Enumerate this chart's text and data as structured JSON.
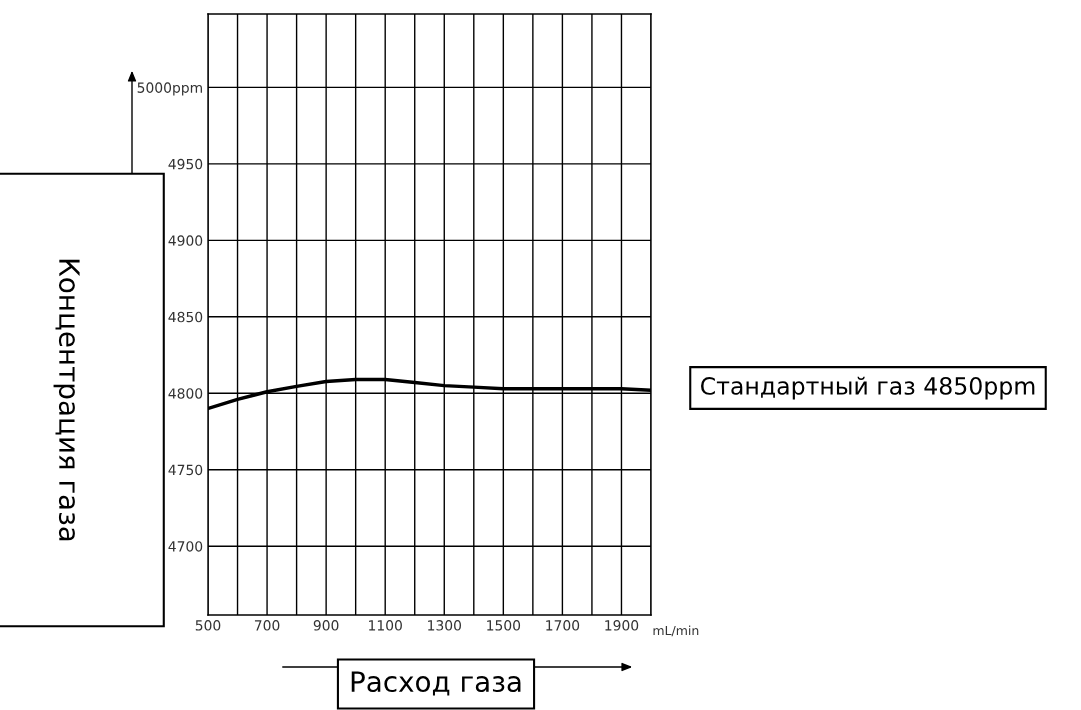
{
  "chart_data": {
    "type": "line",
    "xlabel": "Расход газа",
    "ylabel": "Концентрация газа",
    "x": [
      500,
      600,
      700,
      800,
      900,
      1000,
      1100,
      1200,
      1300,
      1400,
      1500,
      1700,
      1900,
      2000
    ],
    "series": [
      {
        "color": "#000000",
        "values": [
          4790,
          4796,
          4801,
          4804.5,
          4807.7,
          4809,
          4809,
          4807,
          4805,
          4804,
          4803,
          4803,
          4803,
          4802
        ]
      }
    ],
    "xlim": [
      500,
      2000
    ],
    "xticks": [
      500,
      {
        "value": 600,
        "label": null
      },
      700,
      {
        "value": 800,
        "label": null
      },
      900,
      {
        "value": 1000,
        "label": null
      },
      1100,
      {
        "value": 1200,
        "label": null
      },
      1300,
      {
        "value": 1400,
        "label": null
      },
      1500,
      {
        "value": 1600,
        "label": null
      },
      1700,
      {
        "value": 1800,
        "label": null
      },
      1900,
      {
        "value": 2000,
        "label": null
      }
    ],
    "ylim": [
      4655,
      5048
    ],
    "yticks": [
      4700,
      4750,
      4800,
      4850,
      4900,
      4950,
      {
        "value": 5000,
        "label": "5000ppm"
      }
    ],
    "grid": true,
    "marker": "none",
    "line_style": "solid",
    "annotations": [
      "mL/min",
      "Стандартный газ 4850ppm"
    ]
  }
}
